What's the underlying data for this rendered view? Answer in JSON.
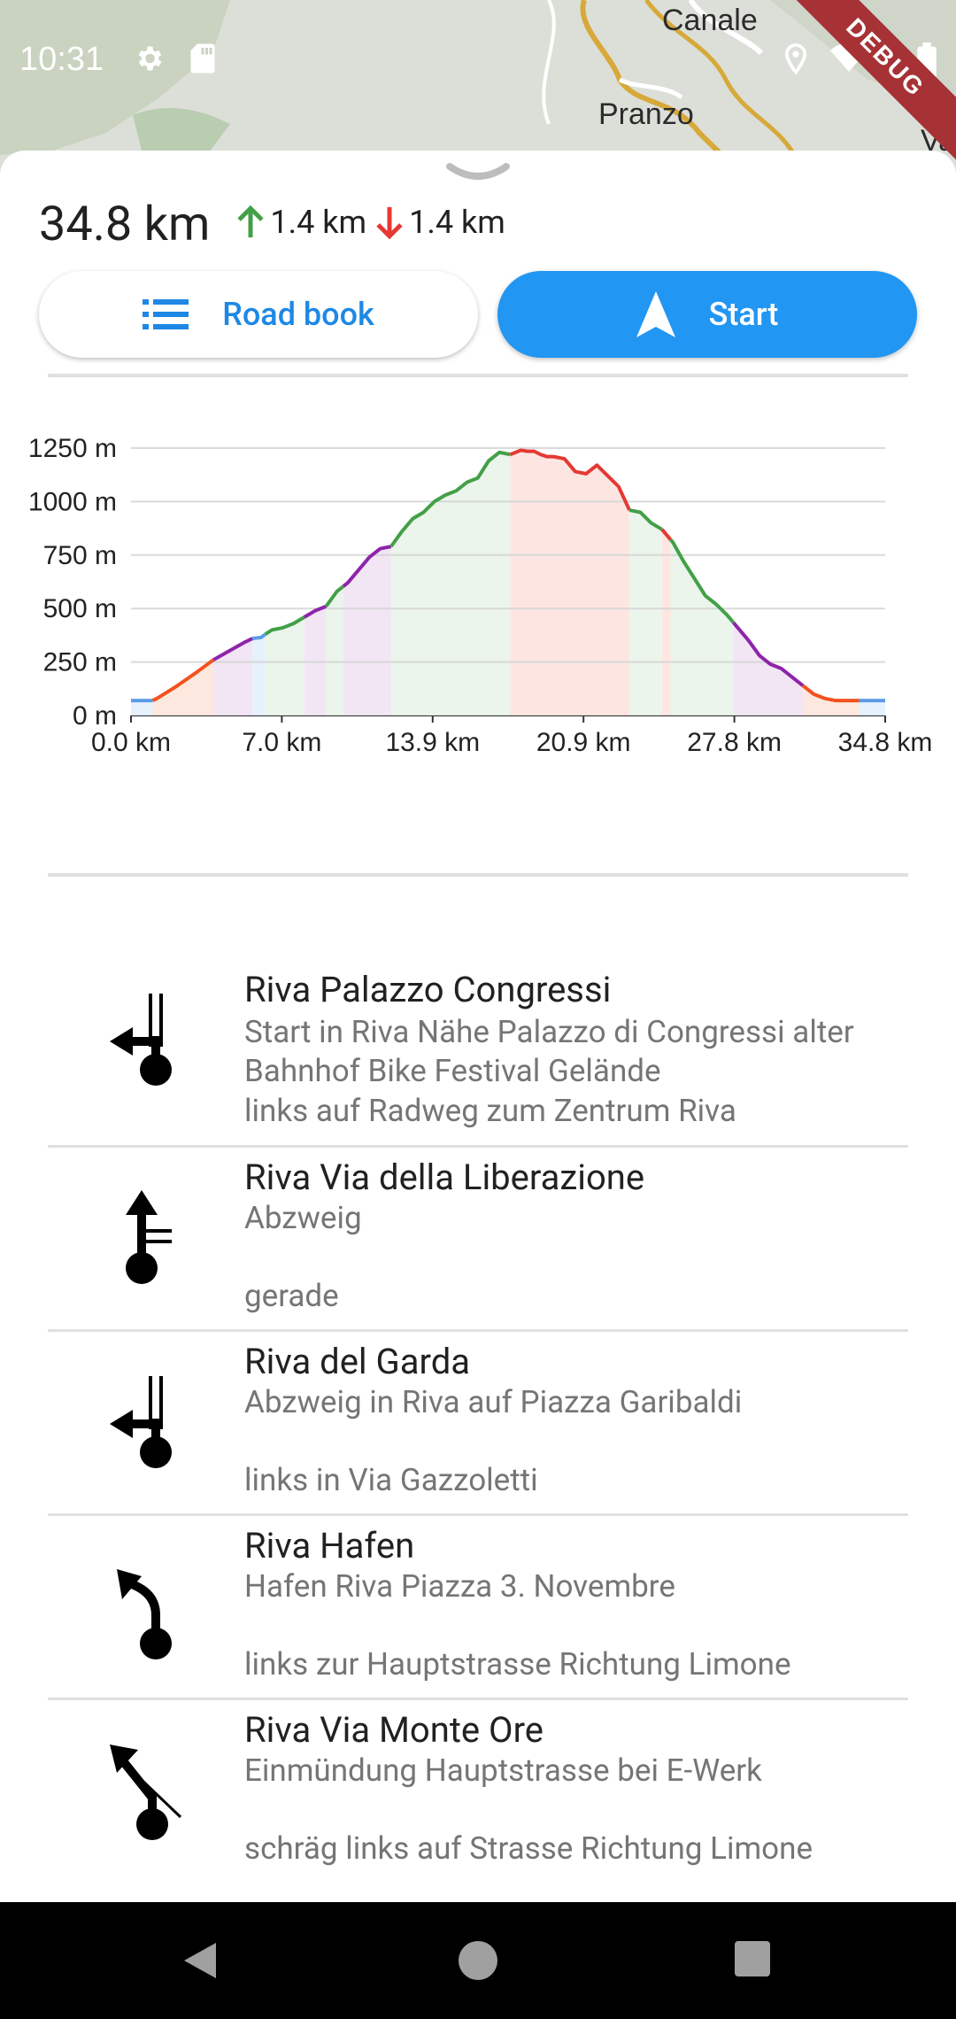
{
  "status_bar": {
    "time": "10:31",
    "debug_label": "DEBUG"
  },
  "map": {
    "labels": [
      "Canale",
      "Pranzo",
      "Va"
    ]
  },
  "summary": {
    "distance": "34.8 km",
    "ascent": "1.4 km",
    "descent": "1.4 km",
    "ascent_color": "#43a047",
    "descent_color": "#e53935"
  },
  "buttons": {
    "road_book": "Road book",
    "start": "Start"
  },
  "colors": {
    "accent": "#2196f3",
    "flat": "#5c9ce6",
    "purple": "#8e24aa",
    "green": "#43a047",
    "orange": "#f4511e",
    "red": "#e53935"
  },
  "chart_data": {
    "type": "area",
    "x_unit": "km",
    "y_unit": "m",
    "x_ticks": [
      "0.0 km",
      "7.0 km",
      "13.9 km",
      "20.9 km",
      "27.8 km",
      "34.8 km"
    ],
    "y_ticks": [
      "0 m",
      "250 m",
      "500 m",
      "750 m",
      "1000 m",
      "1250 m"
    ],
    "xlim": [
      0,
      34.8
    ],
    "ylim": [
      0,
      1250
    ],
    "grid": true,
    "series": [
      {
        "x": [
          0,
          1.0,
          1.2,
          2.0,
          3.0,
          3.8,
          4.5,
          5.2,
          5.6,
          6.0,
          6.2,
          6.5,
          7.0,
          7.5,
          8.0,
          8.5,
          9.0,
          9.5,
          10.0,
          10.5,
          11.0,
          11.5,
          12.0,
          12.5,
          13.0,
          13.5,
          14.0,
          14.5,
          15.0,
          15.5,
          16.0,
          16.5,
          17.0,
          17.5,
          18.0,
          18.3,
          18.6,
          18.9,
          19.2,
          19.5,
          20.0,
          20.5,
          21.0,
          21.5,
          22.0,
          22.5,
          23.0,
          23.5,
          24.0,
          24.5,
          25.0,
          25.5,
          26.0,
          26.5,
          27.0,
          27.5,
          28.0,
          28.5,
          29.0,
          29.5,
          30.0,
          30.5,
          31.0,
          31.5,
          32.0,
          32.5,
          33.0,
          33.5,
          34.0,
          34.8
        ],
        "y": [
          70,
          70,
          80,
          130,
          200,
          260,
          300,
          340,
          360,
          365,
          380,
          400,
          410,
          430,
          460,
          490,
          510,
          580,
          620,
          680,
          740,
          780,
          790,
          860,
          920,
          950,
          1000,
          1030,
          1050,
          1090,
          1110,
          1190,
          1230,
          1220,
          1240,
          1235,
          1235,
          1220,
          1210,
          1210,
          1200,
          1140,
          1130,
          1170,
          1120,
          1070,
          960,
          950,
          900,
          870,
          810,
          720,
          640,
          560,
          520,
          470,
          410,
          350,
          280,
          240,
          220,
          180,
          140,
          100,
          80,
          70,
          70,
          70,
          70,
          70
        ],
        "segments": [
          {
            "from": 0,
            "to": 1.0,
            "class": "flat"
          },
          {
            "from": 1.0,
            "to": 3.8,
            "class": "orange"
          },
          {
            "from": 3.8,
            "to": 5.6,
            "class": "purple"
          },
          {
            "from": 5.6,
            "to": 6.2,
            "class": "flat"
          },
          {
            "from": 6.2,
            "to": 8.0,
            "class": "green"
          },
          {
            "from": 8.0,
            "to": 9.0,
            "class": "purple"
          },
          {
            "from": 9.0,
            "to": 9.8,
            "class": "green"
          },
          {
            "from": 9.8,
            "to": 12.0,
            "class": "purple"
          },
          {
            "from": 12.0,
            "to": 17.5,
            "class": "green"
          },
          {
            "from": 17.5,
            "to": 23.0,
            "class": "red"
          },
          {
            "from": 23.0,
            "to": 24.5,
            "class": "green"
          },
          {
            "from": 24.5,
            "to": 24.9,
            "class": "red"
          },
          {
            "from": 24.9,
            "to": 27.8,
            "class": "green"
          },
          {
            "from": 27.8,
            "to": 31.0,
            "class": "purple"
          },
          {
            "from": 31.0,
            "to": 33.6,
            "class": "orange"
          },
          {
            "from": 33.6,
            "to": 34.8,
            "class": "flat"
          }
        ]
      }
    ]
  },
  "road_book": [
    {
      "title": "Riva Palazzo Congressi",
      "description": "Start in Riva Nähe Palazzo di Congressi alter Bahnhof Bike Festival Gelände",
      "instruction": "links auf Radweg zum Zentrum Riva",
      "icon": "turn-left-icon"
    },
    {
      "title": "Riva Via della Liberazione",
      "description": "Abzweig",
      "instruction": "gerade",
      "icon": "straight-icon"
    },
    {
      "title": "Riva del Garda",
      "description": "Abzweig in Riva auf Piazza Garibaldi",
      "instruction": "links in Via Gazzoletti",
      "icon": "turn-left-icon"
    },
    {
      "title": "Riva Hafen",
      "description": "Hafen Riva Piazza 3. Novembre",
      "instruction": "links zur Hauptstrasse Richtung Limone",
      "icon": "bear-left-icon"
    },
    {
      "title": "Riva Via Monte Ore",
      "description": "Einmündung Hauptstrasse bei E-Werk",
      "instruction": "schräg links auf Strasse Richtung Limone",
      "icon": "sharp-left-icon"
    }
  ]
}
